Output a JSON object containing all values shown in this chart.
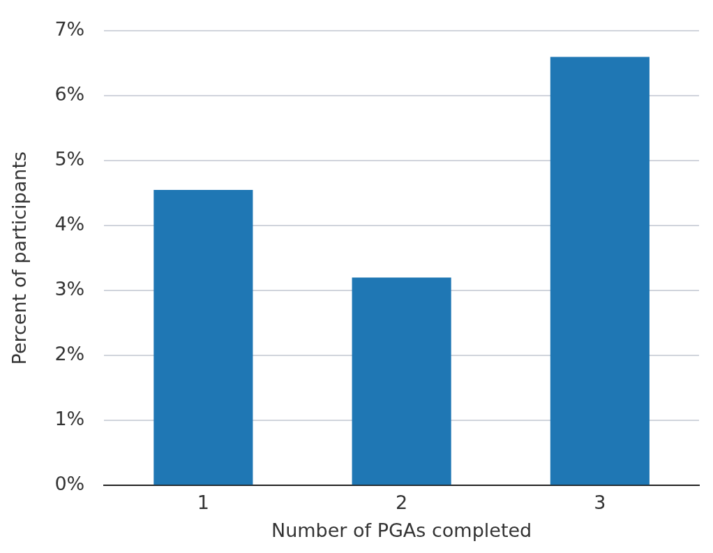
{
  "chart_data": {
    "type": "bar",
    "xlabel": "Number of PGAs completed",
    "ylabel": "Percent of participants",
    "categories": [
      "1",
      "2",
      "3"
    ],
    "values": [
      4.55,
      3.2,
      6.6
    ],
    "color": "#1f77b4",
    "ylim": [
      0,
      7
    ],
    "yticks": [
      {
        "value": 0,
        "label": "0%"
      },
      {
        "value": 1,
        "label": "1%"
      },
      {
        "value": 2,
        "label": "2%"
      },
      {
        "value": 3,
        "label": "3%"
      },
      {
        "value": 4,
        "label": "4%"
      },
      {
        "value": 5,
        "label": "5%"
      },
      {
        "value": 6,
        "label": "6%"
      },
      {
        "value": 7,
        "label": "7%"
      }
    ],
    "grid": "y",
    "legend": false
  }
}
